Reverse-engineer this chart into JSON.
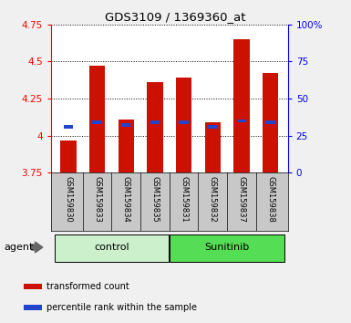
{
  "title": "GDS3109 / 1369360_at",
  "samples": [
    "GSM159830",
    "GSM159833",
    "GSM159834",
    "GSM159835",
    "GSM159831",
    "GSM159832",
    "GSM159837",
    "GSM159838"
  ],
  "groups": [
    {
      "label": "control",
      "indices": [
        0,
        1,
        2,
        3
      ],
      "color": "#ccf0cc"
    },
    {
      "label": "Sunitinib",
      "indices": [
        4,
        5,
        6,
        7
      ],
      "color": "#55dd55"
    }
  ],
  "bar_bottom": 3.75,
  "red_values": [
    3.97,
    4.47,
    4.11,
    4.36,
    4.39,
    4.09,
    4.65,
    4.42
  ],
  "blue_values": [
    4.06,
    4.09,
    4.07,
    4.09,
    4.09,
    4.06,
    4.1,
    4.09
  ],
  "ylim_left": [
    3.75,
    4.75
  ],
  "ylim_right": [
    0,
    100
  ],
  "yticks_left": [
    3.75,
    4.0,
    4.25,
    4.5,
    4.75
  ],
  "yticks_right": [
    0,
    25,
    50,
    75,
    100
  ],
  "ytick_labels_left": [
    "3.75",
    "4",
    "4.25",
    "4.5",
    "4.75"
  ],
  "ytick_labels_right": [
    "0",
    "25",
    "50",
    "75",
    "100%"
  ],
  "bar_color": "#cc1100",
  "blue_color": "#2244cc",
  "plot_bg": "#ffffff",
  "fig_bg": "#f0f0f0",
  "label_bg": "#c8c8c8",
  "agent_label": "agent",
  "legend_items": [
    {
      "color": "#cc1100",
      "label": "transformed count"
    },
    {
      "color": "#2244cc",
      "label": "percentile rank within the sample"
    }
  ]
}
